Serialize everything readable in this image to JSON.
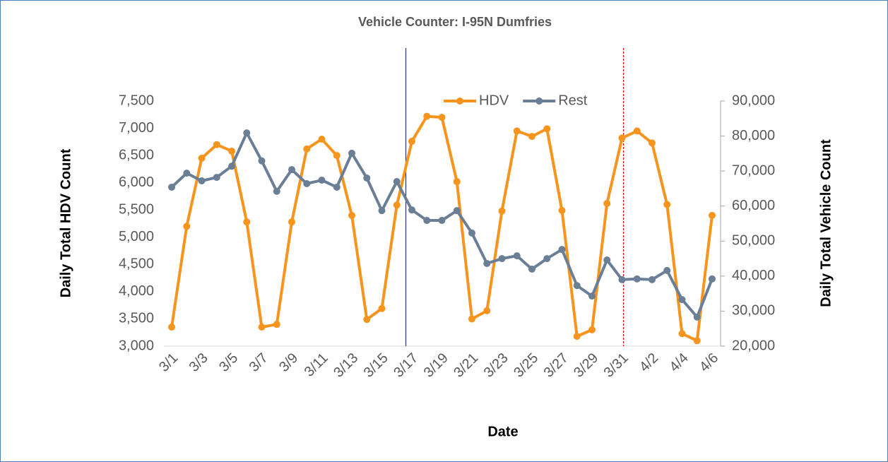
{
  "chart_data": {
    "type": "line",
    "title": "Vehicle Counter: I-95N Dumfries",
    "x_label": "Date",
    "y_label": "Daily Total HDV Count",
    "y2_label": "Daily Total Vehicle Count",
    "categories": [
      "3/1",
      null,
      "3/3",
      null,
      "3/5",
      null,
      "3/7",
      null,
      "3/9",
      null,
      "3/11",
      null,
      "3/13",
      null,
      "3/15",
      null,
      "3/17",
      null,
      "3/19",
      null,
      "3/21",
      null,
      "3/23",
      null,
      "3/25",
      null,
      "3/27",
      null,
      "3/29",
      null,
      "3/31",
      null,
      "4/2",
      null,
      "4/4",
      null,
      "4/6"
    ],
    "series": [
      {
        "name": "HDV",
        "color": "#f7941d",
        "axis": "y",
        "values": [
          3350,
          5200,
          6450,
          6700,
          6580,
          5280,
          3350,
          3400,
          5280,
          6620,
          6800,
          6500,
          5400,
          3490,
          3690,
          5590,
          6760,
          7220,
          7200,
          6020,
          3500,
          3650,
          5480,
          6950,
          6850,
          6990,
          5490,
          3180,
          3300,
          5620,
          6820,
          6950,
          6730,
          5600,
          3230,
          3100,
          5400
        ]
      },
      {
        "name": "Rest",
        "color": "#6a7f95",
        "axis": "y2",
        "values": [
          65400,
          69400,
          67200,
          68200,
          71400,
          80900,
          72900,
          64200,
          70400,
          66400,
          67400,
          65400,
          75100,
          68000,
          58700,
          67000,
          58900,
          55900,
          55900,
          58700,
          52300,
          43600,
          45000,
          45800,
          42000,
          45000,
          47600,
          37300,
          34300,
          44600,
          39000,
          39200,
          39000,
          41600,
          33300,
          28300,
          39200
        ]
      }
    ],
    "ylim": [
      3000,
      7500
    ],
    "yticks": [
      {
        "value": 3000,
        "label": "3,000"
      },
      {
        "value": 3500,
        "label": "3,500"
      },
      {
        "value": 4000,
        "label": "4,000"
      },
      {
        "value": 4500,
        "label": "4,500"
      },
      {
        "value": 5000,
        "label": "5,000"
      },
      {
        "value": 5500,
        "label": "5,500"
      },
      {
        "value": 6000,
        "label": "6,000"
      },
      {
        "value": 6500,
        "label": "6,500"
      },
      {
        "value": 7000,
        "label": "7,000"
      },
      {
        "value": 7500,
        "label": "7,500"
      }
    ],
    "y2lim": [
      20000,
      90000
    ],
    "y2ticks": [
      {
        "value": 20000,
        "label": "20,000"
      },
      {
        "value": 30000,
        "label": "30,000"
      },
      {
        "value": 40000,
        "label": "40,000"
      },
      {
        "value": 50000,
        "label": "50,000"
      },
      {
        "value": 60000,
        "label": "60,000"
      },
      {
        "value": 70000,
        "label": "70,000"
      },
      {
        "value": 80000,
        "label": "80,000"
      },
      {
        "value": 90000,
        "label": "90,000"
      }
    ],
    "reference_lines": [
      {
        "x": 15.6,
        "color": "#1f3864",
        "dash": false
      },
      {
        "x": 30.1,
        "color": "#e00000",
        "dash": true
      }
    ],
    "grid": false,
    "legend": "top"
  }
}
